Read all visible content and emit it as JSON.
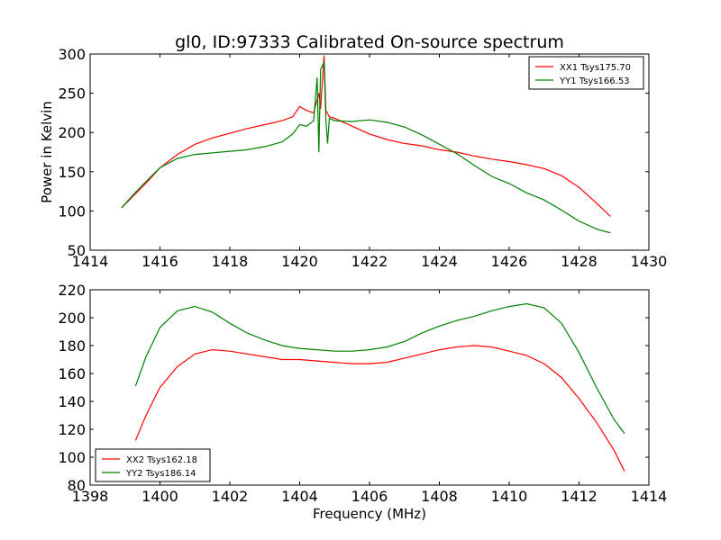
{
  "chart_data": [
    {
      "type": "line",
      "title": "gl0, ID:97333 Calibrated On-source spectrum",
      "xlabel": "",
      "ylabel": "Power in Kelvin",
      "xlim": [
        1414,
        1430
      ],
      "ylim": [
        50,
        300
      ],
      "xticks": [
        1414,
        1416,
        1418,
        1420,
        1422,
        1424,
        1426,
        1428,
        1430
      ],
      "yticks": [
        50,
        100,
        150,
        200,
        250,
        300
      ],
      "legend_position": "top-right",
      "grid": false,
      "series": [
        {
          "name": "XX1 Tsys175.70",
          "color": "#ff0000",
          "x": [
            1414.9,
            1415.3,
            1415.7,
            1416.0,
            1416.5,
            1417.0,
            1417.5,
            1418.0,
            1418.5,
            1419.0,
            1419.5,
            1419.8,
            1420.0,
            1420.2,
            1420.4,
            1420.55,
            1420.6,
            1420.7,
            1420.75,
            1420.85,
            1421.0,
            1421.5,
            1422.0,
            1422.5,
            1423.0,
            1423.5,
            1424.0,
            1424.5,
            1425.0,
            1425.5,
            1426.0,
            1426.5,
            1427.0,
            1427.5,
            1428.0,
            1428.5,
            1428.9
          ],
          "y": [
            104,
            122,
            140,
            155,
            172,
            185,
            193,
            199,
            205,
            210,
            215,
            220,
            233,
            228,
            225,
            250,
            230,
            298,
            228,
            220,
            218,
            208,
            198,
            191,
            186,
            183,
            178,
            175,
            170,
            166,
            163,
            159,
            154,
            145,
            130,
            110,
            93
          ]
        },
        {
          "name": "YY1 Tsys166.53",
          "color": "#008000",
          "x": [
            1414.9,
            1415.3,
            1415.7,
            1416.0,
            1416.5,
            1417.0,
            1417.5,
            1418.0,
            1418.5,
            1419.0,
            1419.5,
            1419.8,
            1420.0,
            1420.2,
            1420.4,
            1420.5,
            1420.55,
            1420.6,
            1420.7,
            1420.75,
            1420.8,
            1420.85,
            1421.0,
            1421.5,
            1422.0,
            1422.5,
            1423.0,
            1423.5,
            1424.0,
            1424.5,
            1425.0,
            1425.5,
            1426.0,
            1426.5,
            1427.0,
            1427.5,
            1428.0,
            1428.5,
            1428.9
          ],
          "y": [
            104,
            124,
            142,
            155,
            167,
            172,
            174,
            176,
            178,
            182,
            188,
            198,
            210,
            208,
            215,
            270,
            175,
            280,
            290,
            215,
            186,
            218,
            215,
            214,
            216,
            213,
            207,
            197,
            185,
            173,
            158,
            144,
            135,
            123,
            114,
            101,
            87,
            77,
            72
          ]
        }
      ]
    },
    {
      "type": "line",
      "title": "",
      "xlabel": "Frequency (MHz)",
      "ylabel": "",
      "xlim": [
        1398,
        1414
      ],
      "ylim": [
        80,
        220
      ],
      "xticks": [
        1398,
        1400,
        1402,
        1404,
        1406,
        1408,
        1410,
        1412,
        1414
      ],
      "yticks": [
        80,
        100,
        120,
        140,
        160,
        180,
        200,
        220
      ],
      "legend_position": "bottom-left",
      "grid": false,
      "series": [
        {
          "name": "XX2 Tsys162.18",
          "color": "#ff0000",
          "x": [
            1399.3,
            1399.6,
            1400.0,
            1400.5,
            1401.0,
            1401.5,
            1402.0,
            1402.5,
            1403.0,
            1403.5,
            1404.0,
            1404.5,
            1405.0,
            1405.5,
            1406.0,
            1406.5,
            1407.0,
            1407.5,
            1408.0,
            1408.5,
            1409.0,
            1409.5,
            1410.0,
            1410.5,
            1411.0,
            1411.5,
            1412.0,
            1412.5,
            1413.0,
            1413.3
          ],
          "y": [
            112,
            130,
            150,
            165,
            174,
            177,
            176,
            174,
            172,
            170,
            170,
            169,
            168,
            167,
            167,
            168,
            171,
            174,
            177,
            179,
            180,
            179,
            176,
            173,
            167,
            157,
            142,
            125,
            105,
            90
          ]
        },
        {
          "name": "YY2 Tsys186.14",
          "color": "#008000",
          "x": [
            1399.3,
            1399.6,
            1400.0,
            1400.5,
            1401.0,
            1401.5,
            1402.0,
            1402.5,
            1403.0,
            1403.5,
            1404.0,
            1404.5,
            1405.0,
            1405.5,
            1406.0,
            1406.5,
            1407.0,
            1407.5,
            1408.0,
            1408.5,
            1409.0,
            1409.5,
            1410.0,
            1410.5,
            1411.0,
            1411.5,
            1412.0,
            1412.5,
            1413.0,
            1413.3
          ],
          "y": [
            151,
            172,
            193,
            205,
            208,
            204,
            196,
            189,
            184,
            180,
            178,
            177,
            176,
            176,
            177,
            179,
            183,
            189,
            194,
            198,
            201,
            205,
            208,
            210,
            207,
            196,
            175,
            150,
            127,
            117
          ]
        }
      ]
    }
  ]
}
